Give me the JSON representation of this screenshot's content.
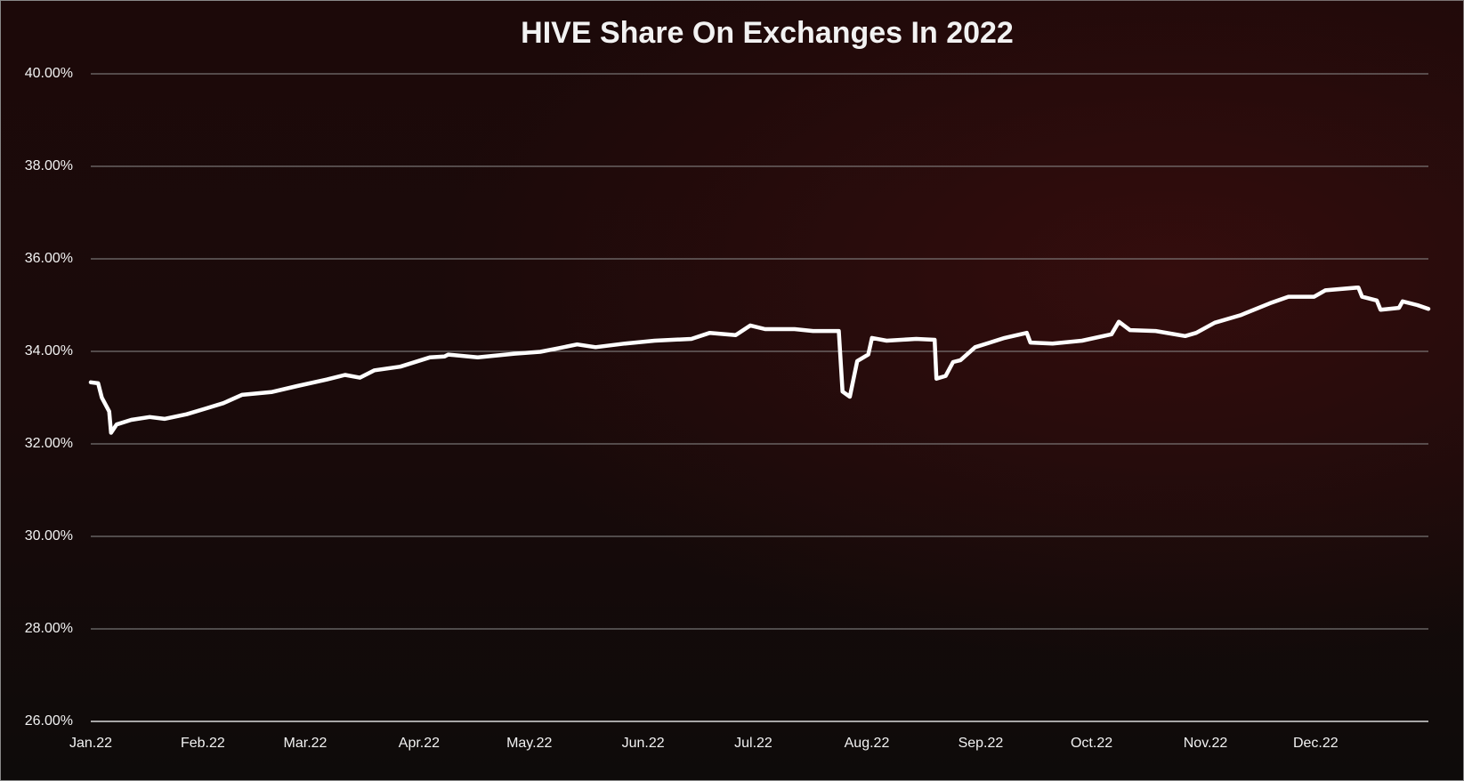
{
  "chart_data": {
    "type": "line",
    "title": "HIVE Share On Exchanges In 2022",
    "xlim": [
      0,
      363
    ],
    "xticks": [
      {
        "value": 0,
        "label": "Jan.22"
      },
      {
        "value": 30.4,
        "label": "Feb.22"
      },
      {
        "value": 58.2,
        "label": "Mar.22"
      },
      {
        "value": 89.1,
        "label": "Apr.22"
      },
      {
        "value": 119,
        "label": "May.22"
      },
      {
        "value": 149.9,
        "label": "Jun.22"
      },
      {
        "value": 179.8,
        "label": "Jul.22"
      },
      {
        "value": 210.6,
        "label": "Aug.22"
      },
      {
        "value": 241.5,
        "label": "Sep.22"
      },
      {
        "value": 271.6,
        "label": "Oct.22"
      },
      {
        "value": 302.5,
        "label": "Nov.22"
      },
      {
        "value": 332.4,
        "label": "Dec.22"
      }
    ],
    "ylim": [
      26,
      40
    ],
    "yticks": [
      {
        "value": 26,
        "label": "26.00%"
      },
      {
        "value": 28,
        "label": "28.00%"
      },
      {
        "value": 30,
        "label": "30.00%"
      },
      {
        "value": 32,
        "label": "32.00%"
      },
      {
        "value": 34,
        "label": "34.00%"
      },
      {
        "value": 36,
        "label": "36.00%"
      },
      {
        "value": 38,
        "label": "38.00%"
      },
      {
        "value": 40,
        "label": "40.00%"
      }
    ],
    "grid": true,
    "series": [
      {
        "color": "#ffffff",
        "x": [
          0,
          2,
          3,
          5,
          5.5,
          7,
          11,
          16,
          20,
          26,
          31,
          36,
          41,
          49,
          56,
          64,
          69,
          73,
          77,
          84,
          92,
          96,
          97,
          105,
          115,
          122,
          127,
          132,
          137,
          145,
          153,
          163,
          168,
          175,
          179,
          183,
          191,
          196,
          203,
          204,
          206,
          208,
          211,
          212,
          216,
          224,
          229,
          229.5,
          232,
          234,
          236,
          240,
          244,
          248,
          254,
          255,
          261,
          269,
          277,
          279,
          282,
          289,
          297,
          300,
          305,
          312,
          320,
          325,
          332,
          335,
          344,
          345,
          349,
          350,
          355,
          356,
          360,
          363
        ],
        "values": [
          33.33,
          33.31,
          33.0,
          32.7,
          32.24,
          32.42,
          32.52,
          32.58,
          32.54,
          32.64,
          32.76,
          32.88,
          33.06,
          33.12,
          33.25,
          33.39,
          33.49,
          33.43,
          33.59,
          33.67,
          33.87,
          33.89,
          33.93,
          33.87,
          33.95,
          33.99,
          34.07,
          34.15,
          34.09,
          34.17,
          34.23,
          34.27,
          34.4,
          34.35,
          34.56,
          34.48,
          34.48,
          34.44,
          34.44,
          33.13,
          33.02,
          33.79,
          33.93,
          34.29,
          34.23,
          34.27,
          34.25,
          33.41,
          33.47,
          33.77,
          33.81,
          34.09,
          34.19,
          34.29,
          34.4,
          34.19,
          34.17,
          34.23,
          34.37,
          34.64,
          34.46,
          34.44,
          34.33,
          34.4,
          34.62,
          34.78,
          35.04,
          35.18,
          35.18,
          35.32,
          35.38,
          35.18,
          35.1,
          34.9,
          34.94,
          35.08,
          35.0,
          34.92
        ]
      }
    ]
  }
}
